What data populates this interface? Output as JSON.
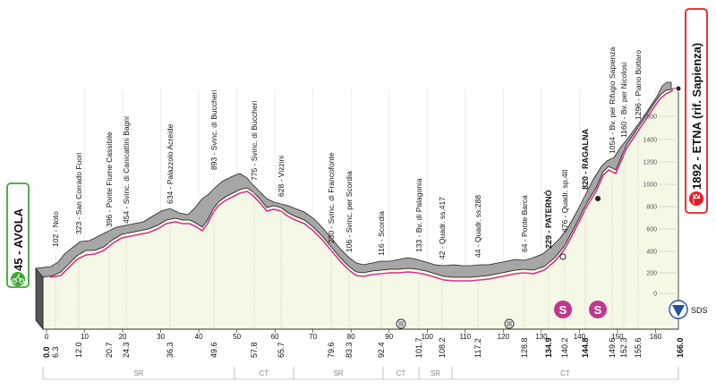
{
  "start": {
    "name": "45 - AVOLA",
    "icon": "cyclist-icon"
  },
  "finish": {
    "name": "1892 - ETNA (rif. Sapienza)",
    "icon": "finish-flag-icon"
  },
  "altitude_ticks": [
    "1600",
    "1400",
    "1200",
    "1000",
    "800",
    "600",
    "400",
    "200",
    "0"
  ],
  "top_km_ticks": [
    "0",
    "10",
    "20",
    "30",
    "40",
    "50",
    "60",
    "70",
    "80",
    "90",
    "100",
    "110",
    "120",
    "130",
    "140",
    "150",
    "160"
  ],
  "waypoints": [
    {
      "label": "102 - Noto",
      "km": "6.3"
    },
    {
      "label": "323 - San Corrado Fuori",
      "km": "12.0"
    },
    {
      "label": "396 - Ponte Fiume Cassibile",
      "km": "20.7"
    },
    {
      "label": "454 - Svinc. di Canicattini Bagni",
      "km": "24.3"
    },
    {
      "label": "634 - Palazzolo Acreide",
      "km": "36.3"
    },
    {
      "label": "893 - Svinc. di Buccheri",
      "km": "49.6"
    },
    {
      "label": "775 - Svinc. di Buccheri",
      "km": "57.8"
    },
    {
      "label": "628 - Vizzini",
      "km": "65.7"
    },
    {
      "label": "230 - Svinc. di Francofonte",
      "km": "79.6"
    },
    {
      "label": "106 - Svinc. per Scordia",
      "km": "83.3"
    },
    {
      "label": "116 - Scordia",
      "km": "92.4"
    },
    {
      "label": "133 - Bv. di Palagonia",
      "km": "101.7"
    },
    {
      "label": "42 - Quadr. ss.417",
      "km": "108.2"
    },
    {
      "label": "44 - Quadr. ss.288",
      "km": "117.2"
    },
    {
      "label": "64 - Ponte Barca",
      "km": "128.8"
    },
    {
      "label": "229 - PATERNÒ",
      "km": "134.9"
    },
    {
      "label": "476 - Quadr. sp.4II",
      "km": "140.2"
    },
    {
      "label": "820 - RAGALNA",
      "km": "144.8"
    },
    {
      "label": "1054 - Bv. per Rifugio Sapienza",
      "km": "149.6"
    },
    {
      "label": "1160 - Bv. per Nicolosi",
      "km": "152.3"
    },
    {
      "label": "1296 - Piano Bottaro",
      "km": "155.6"
    }
  ],
  "start_km": "0.0",
  "finish_km": "166.0",
  "provinces": [
    "SR",
    "CT",
    "SR",
    "CT",
    "SR",
    "CT"
  ],
  "sprints": [
    {
      "letter": "S"
    },
    {
      "letter": "S"
    }
  ],
  "finish_marker": "SDS",
  "colors": {
    "profile_top": "#a9a9a9",
    "profile_fill": "#f6f8e6",
    "road": "#d6338f",
    "sprint": "#c2368d",
    "finish_icon": "#e51c23",
    "start_icon": "#3aa832"
  }
}
